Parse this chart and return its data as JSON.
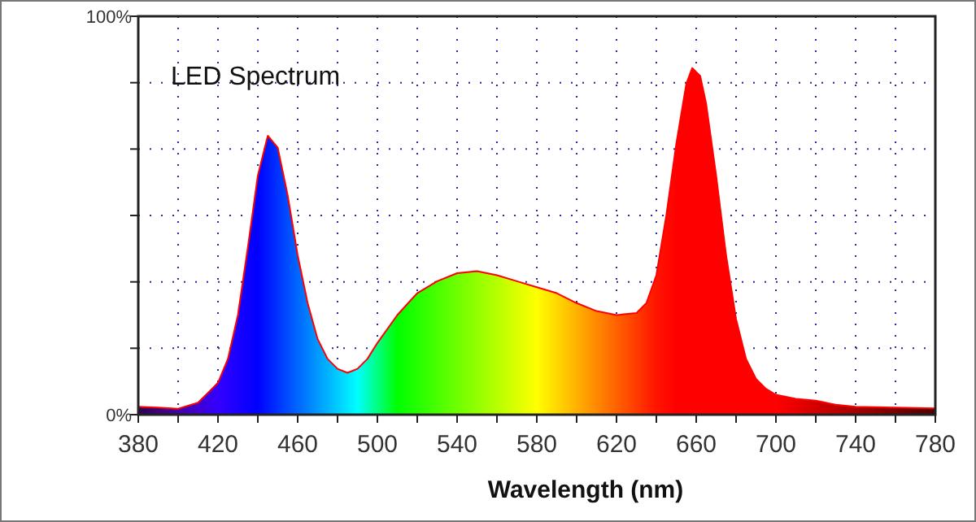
{
  "chart_data": {
    "type": "area",
    "title": "LED Spectrum",
    "xlabel": "Wavelength (nm)",
    "xlim": [
      380,
      780
    ],
    "xticks": [
      380,
      {
        "value": 400,
        "label": null
      },
      420,
      {
        "value": 440,
        "label": null
      },
      460,
      {
        "value": 480,
        "label": null
      },
      500,
      {
        "value": 520,
        "label": null
      },
      540,
      {
        "value": 560,
        "label": null
      },
      580,
      {
        "value": 600,
        "label": null
      },
      620,
      {
        "value": 640,
        "label": null
      },
      660,
      {
        "value": 680,
        "label": null
      },
      700,
      {
        "value": 720,
        "label": null
      },
      740,
      {
        "value": 760,
        "label": null
      },
      780
    ],
    "ylim": [
      0,
      100
    ],
    "yticks": [
      {
        "value": 0,
        "label": "0%"
      },
      {
        "value": 16.67,
        "label": null
      },
      {
        "value": 33.33,
        "label": null
      },
      {
        "value": 50,
        "label": null
      },
      {
        "value": 66.67,
        "label": null
      },
      {
        "value": 83.33,
        "label": null
      },
      {
        "value": 100,
        "label": "100%"
      }
    ],
    "grid": true,
    "series": [
      {
        "color": "#ff0000",
        "x": [
          380,
          390,
          400,
          410,
          420,
          425,
          430,
          435,
          440,
          445,
          450,
          455,
          460,
          465,
          470,
          475,
          480,
          485,
          490,
          495,
          500,
          510,
          520,
          530,
          540,
          550,
          560,
          570,
          580,
          590,
          600,
          610,
          620,
          630,
          635,
          640,
          645,
          650,
          655,
          658,
          662,
          665,
          670,
          675,
          680,
          685,
          690,
          695,
          700,
          710,
          720,
          730,
          740,
          760,
          780
        ],
        "values": [
          2,
          1.8,
          1.5,
          3,
          8,
          14,
          25,
          42,
          60,
          70,
          67,
          55,
          40,
          28,
          19,
          14,
          11.5,
          10.5,
          11.5,
          14,
          18,
          25,
          30.5,
          33.5,
          35.5,
          36,
          35,
          33.5,
          32,
          30.5,
          28,
          26,
          25,
          25.5,
          28,
          35,
          50,
          68,
          83,
          87,
          85,
          78,
          60,
          40,
          24,
          14,
          9,
          6.5,
          5,
          4,
          3.5,
          2.5,
          2,
          1.8,
          1.6
        ]
      }
    ]
  }
}
